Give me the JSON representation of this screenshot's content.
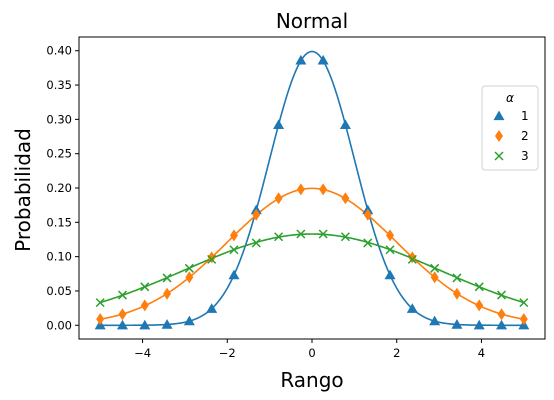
{
  "chart_data": {
    "type": "line",
    "title": "Normal",
    "xlabel": "Rango",
    "ylabel": "Probabilidad",
    "xlim": [
      -5.5,
      5.5
    ],
    "ylim": [
      -0.02,
      0.42
    ],
    "x_ticks": [
      -4,
      -2,
      0,
      2,
      4
    ],
    "x_tick_labels": [
      "−4",
      "−2",
      "0",
      "2",
      "4"
    ],
    "y_ticks": [
      0.0,
      0.05,
      0.1,
      0.15,
      0.2,
      0.25,
      0.3,
      0.35,
      0.4
    ],
    "y_tick_labels": [
      "0.00",
      "0.05",
      "0.10",
      "0.15",
      "0.20",
      "0.25",
      "0.30",
      "0.35",
      "0.40"
    ],
    "grid": false,
    "legend": {
      "title": "α",
      "placement": "center-right"
    },
    "sample_x": [
      -5.0,
      -4.474,
      -3.947,
      -3.421,
      -2.895,
      -2.368,
      -1.842,
      -1.316,
      -0.789,
      -0.263,
      0.263,
      0.789,
      1.316,
      1.842,
      2.368,
      2.895,
      3.421,
      3.947,
      4.474,
      5.0
    ],
    "series": [
      {
        "name": "1",
        "color": "#1f77b4",
        "marker": "triangle",
        "x": [
          -5.0,
          -4.474,
          -3.947,
          -3.421,
          -2.895,
          -2.368,
          -1.842,
          -1.316,
          -0.789,
          -0.263,
          0.263,
          0.789,
          1.316,
          1.842,
          2.368,
          2.895,
          3.421,
          3.947,
          4.474,
          5.0
        ],
        "y": [
          0.0,
          0.0,
          0.0,
          0.001,
          0.006,
          0.024,
          0.073,
          0.168,
          0.292,
          0.386,
          0.386,
          0.292,
          0.168,
          0.073,
          0.024,
          0.006,
          0.001,
          0.0,
          0.0,
          0.0
        ],
        "curve": {
          "type": "normal",
          "mean": 0,
          "sd": 1
        }
      },
      {
        "name": "2",
        "color": "#ff7f0e",
        "marker": "diamond",
        "x": [
          -5.0,
          -4.474,
          -3.947,
          -3.421,
          -2.895,
          -2.368,
          -1.842,
          -1.316,
          -0.789,
          -0.263,
          0.263,
          0.789,
          1.316,
          1.842,
          2.368,
          2.895,
          3.421,
          3.947,
          4.474,
          5.0
        ],
        "y": [
          0.009,
          0.016,
          0.029,
          0.046,
          0.07,
          0.099,
          0.131,
          0.161,
          0.185,
          0.198,
          0.198,
          0.185,
          0.161,
          0.131,
          0.099,
          0.07,
          0.046,
          0.029,
          0.016,
          0.009
        ],
        "curve": {
          "type": "normal",
          "mean": 0,
          "sd": 2
        }
      },
      {
        "name": "3",
        "color": "#2ca02c",
        "marker": "x",
        "x": [
          -5.0,
          -4.474,
          -3.947,
          -3.421,
          -2.895,
          -2.368,
          -1.842,
          -1.316,
          -0.789,
          -0.263,
          0.263,
          0.789,
          1.316,
          1.842,
          2.368,
          2.895,
          3.421,
          3.947,
          4.474,
          5.0
        ],
        "y": [
          0.033,
          0.044,
          0.056,
          0.069,
          0.083,
          0.096,
          0.11,
          0.12,
          0.129,
          0.133,
          0.133,
          0.129,
          0.12,
          0.11,
          0.096,
          0.083,
          0.069,
          0.056,
          0.044,
          0.033
        ],
        "curve": {
          "type": "normal",
          "mean": 0,
          "sd": 3
        }
      }
    ]
  }
}
